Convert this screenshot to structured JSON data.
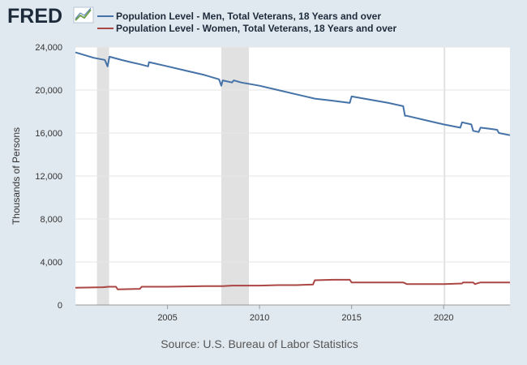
{
  "logo": {
    "text": "FRED",
    "icon": "chart-trend-icon"
  },
  "source": "Source: U.S. Bureau of Labor Statistics",
  "colors": {
    "background": "#e1e9f0",
    "plot_background": "#ffffff",
    "grid": "#e6e6e6",
    "recession": "#e1e1e1",
    "men": "#4572a7",
    "women": "#aa4643",
    "logo": "#1c2a3a"
  },
  "chart_data": {
    "type": "line",
    "title": "",
    "xlabel": "",
    "ylabel": "Thousands of Persons",
    "xlim": [
      2000.0,
      2023.6
    ],
    "ylim": [
      0,
      24000
    ],
    "yticks": [
      0,
      4000,
      8000,
      12000,
      16000,
      20000,
      24000
    ],
    "ytick_labels": [
      "0",
      "4,000",
      "8,000",
      "12,000",
      "16,000",
      "20,000",
      "24,000"
    ],
    "xticks": [
      2005,
      2010,
      2015,
      2020
    ],
    "xtick_labels": [
      "2005",
      "2010",
      "2015",
      "2020"
    ],
    "grid": true,
    "legend_position": "top",
    "recessions": [
      [
        2001.17,
        2001.83
      ],
      [
        2007.92,
        2009.42
      ],
      [
        2020.0,
        2020.08
      ]
    ],
    "series": [
      {
        "name": "Population Level - Men, Total Veterans, 18 Years and over",
        "color": "#4572a7",
        "points": [
          [
            2000.0,
            23500
          ],
          [
            2001.0,
            23000
          ],
          [
            2001.6,
            22800
          ],
          [
            2001.75,
            22200
          ],
          [
            2001.85,
            23100
          ],
          [
            2002.5,
            22800
          ],
          [
            2003.0,
            22600
          ],
          [
            2003.5,
            22400
          ],
          [
            2003.95,
            22200
          ],
          [
            2004.0,
            22600
          ],
          [
            2005.0,
            22200
          ],
          [
            2006.0,
            21800
          ],
          [
            2007.0,
            21400
          ],
          [
            2007.8,
            21000
          ],
          [
            2007.92,
            20400
          ],
          [
            2008.0,
            20900
          ],
          [
            2008.5,
            20700
          ],
          [
            2008.6,
            20900
          ],
          [
            2009.0,
            20700
          ],
          [
            2010.0,
            20400
          ],
          [
            2011.0,
            20000
          ],
          [
            2012.0,
            19600
          ],
          [
            2013.0,
            19200
          ],
          [
            2014.0,
            19000
          ],
          [
            2014.9,
            18800
          ],
          [
            2015.0,
            19400
          ],
          [
            2016.0,
            19100
          ],
          [
            2017.0,
            18800
          ],
          [
            2017.8,
            18500
          ],
          [
            2017.9,
            17600
          ],
          [
            2018.0,
            17600
          ],
          [
            2019.0,
            17200
          ],
          [
            2020.0,
            16800
          ],
          [
            2020.9,
            16500
          ],
          [
            2021.0,
            17000
          ],
          [
            2021.5,
            16800
          ],
          [
            2021.6,
            16200
          ],
          [
            2021.9,
            16100
          ],
          [
            2022.0,
            16500
          ],
          [
            2022.5,
            16400
          ],
          [
            2022.9,
            16300
          ],
          [
            2023.0,
            16000
          ],
          [
            2023.6,
            15800
          ]
        ]
      },
      {
        "name": "Population Level - Women, Total Veterans, 18 Years and over",
        "color": "#aa4643",
        "points": [
          [
            2000.0,
            1600
          ],
          [
            2001.5,
            1650
          ],
          [
            2001.8,
            1700
          ],
          [
            2002.2,
            1700
          ],
          [
            2002.3,
            1450
          ],
          [
            2003.5,
            1500
          ],
          [
            2003.6,
            1700
          ],
          [
            2005.0,
            1700
          ],
          [
            2007.0,
            1750
          ],
          [
            2008.0,
            1750
          ],
          [
            2008.5,
            1800
          ],
          [
            2010.0,
            1800
          ],
          [
            2011.0,
            1850
          ],
          [
            2012.0,
            1850
          ],
          [
            2012.9,
            1900
          ],
          [
            2013.0,
            2300
          ],
          [
            2014.0,
            2350
          ],
          [
            2014.9,
            2350
          ],
          [
            2015.0,
            2100
          ],
          [
            2016.0,
            2100
          ],
          [
            2017.0,
            2100
          ],
          [
            2017.8,
            2100
          ],
          [
            2018.0,
            1950
          ],
          [
            2019.0,
            1950
          ],
          [
            2020.0,
            1950
          ],
          [
            2021.0,
            2000
          ],
          [
            2021.05,
            2100
          ],
          [
            2021.6,
            2100
          ],
          [
            2021.7,
            1950
          ],
          [
            2022.0,
            2100
          ],
          [
            2023.6,
            2100
          ]
        ]
      }
    ]
  }
}
